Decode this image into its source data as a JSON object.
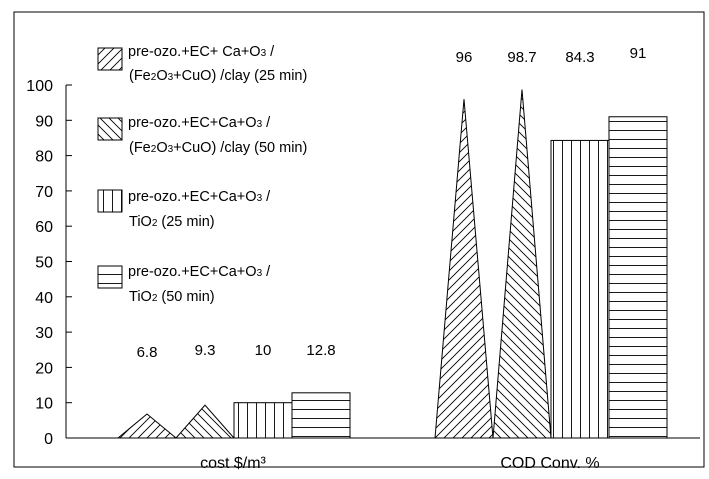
{
  "chart_data": {
    "type": "bar",
    "categories": [
      "cost $/m³",
      "COD Conv. %"
    ],
    "series": [
      {
        "name_parts": [
          [
            [
              "pre-ozo.+EC+ Ca+O",
              ""
            ],
            [
              "3",
              "sub"
            ],
            [
              " /",
              ""
            ]
          ],
          [
            [
              "(Fe",
              ""
            ],
            [
              "2",
              "sub"
            ],
            [
              "O",
              ""
            ],
            [
              "3",
              "sub"
            ],
            [
              "+CuO) /clay (25 min)",
              ""
            ]
          ]
        ],
        "shape": "triangle",
        "pattern": "diagonal-forward",
        "values": [
          6.8,
          96
        ]
      },
      {
        "name_parts": [
          [
            [
              "pre-ozo.+EC+Ca+O",
              ""
            ],
            [
              "3",
              "sub"
            ],
            [
              " /",
              ""
            ]
          ],
          [
            [
              "(Fe",
              ""
            ],
            [
              "2",
              "sub"
            ],
            [
              "O",
              ""
            ],
            [
              "3",
              "sub"
            ],
            [
              "+CuO) /clay (50 min)",
              ""
            ]
          ]
        ],
        "shape": "triangle",
        "pattern": "diagonal-backward",
        "values": [
          9.3,
          98.7
        ]
      },
      {
        "name_parts": [
          [
            [
              "pre-ozo.+EC+Ca+O",
              ""
            ],
            [
              "3",
              "sub"
            ],
            [
              " /",
              ""
            ]
          ],
          [
            [
              "TiO",
              ""
            ],
            [
              "2",
              "sub"
            ],
            [
              " (25 min)",
              ""
            ]
          ]
        ],
        "shape": "rect",
        "pattern": "vertical",
        "values": [
          10,
          84.3
        ]
      },
      {
        "name_parts": [
          [
            [
              "pre-ozo.+EC+Ca+O",
              ""
            ],
            [
              "3",
              "sub"
            ],
            [
              " /",
              ""
            ]
          ],
          [
            [
              "TiO",
              ""
            ],
            [
              "2",
              "sub"
            ],
            [
              " (50 min)",
              ""
            ]
          ]
        ],
        "shape": "rect",
        "pattern": "horizontal",
        "values": [
          12.8,
          91
        ]
      }
    ],
    "data_labels": [
      [
        "6.8",
        "9.3",
        "10",
        "12.8"
      ],
      [
        "96",
        "98.7",
        "84.3",
        "91"
      ]
    ],
    "yticks": [
      0,
      10,
      20,
      30,
      40,
      50,
      60,
      70,
      80,
      90,
      100
    ],
    "ylim": [
      0,
      100
    ],
    "grid": false,
    "legend_position": "top-left"
  }
}
